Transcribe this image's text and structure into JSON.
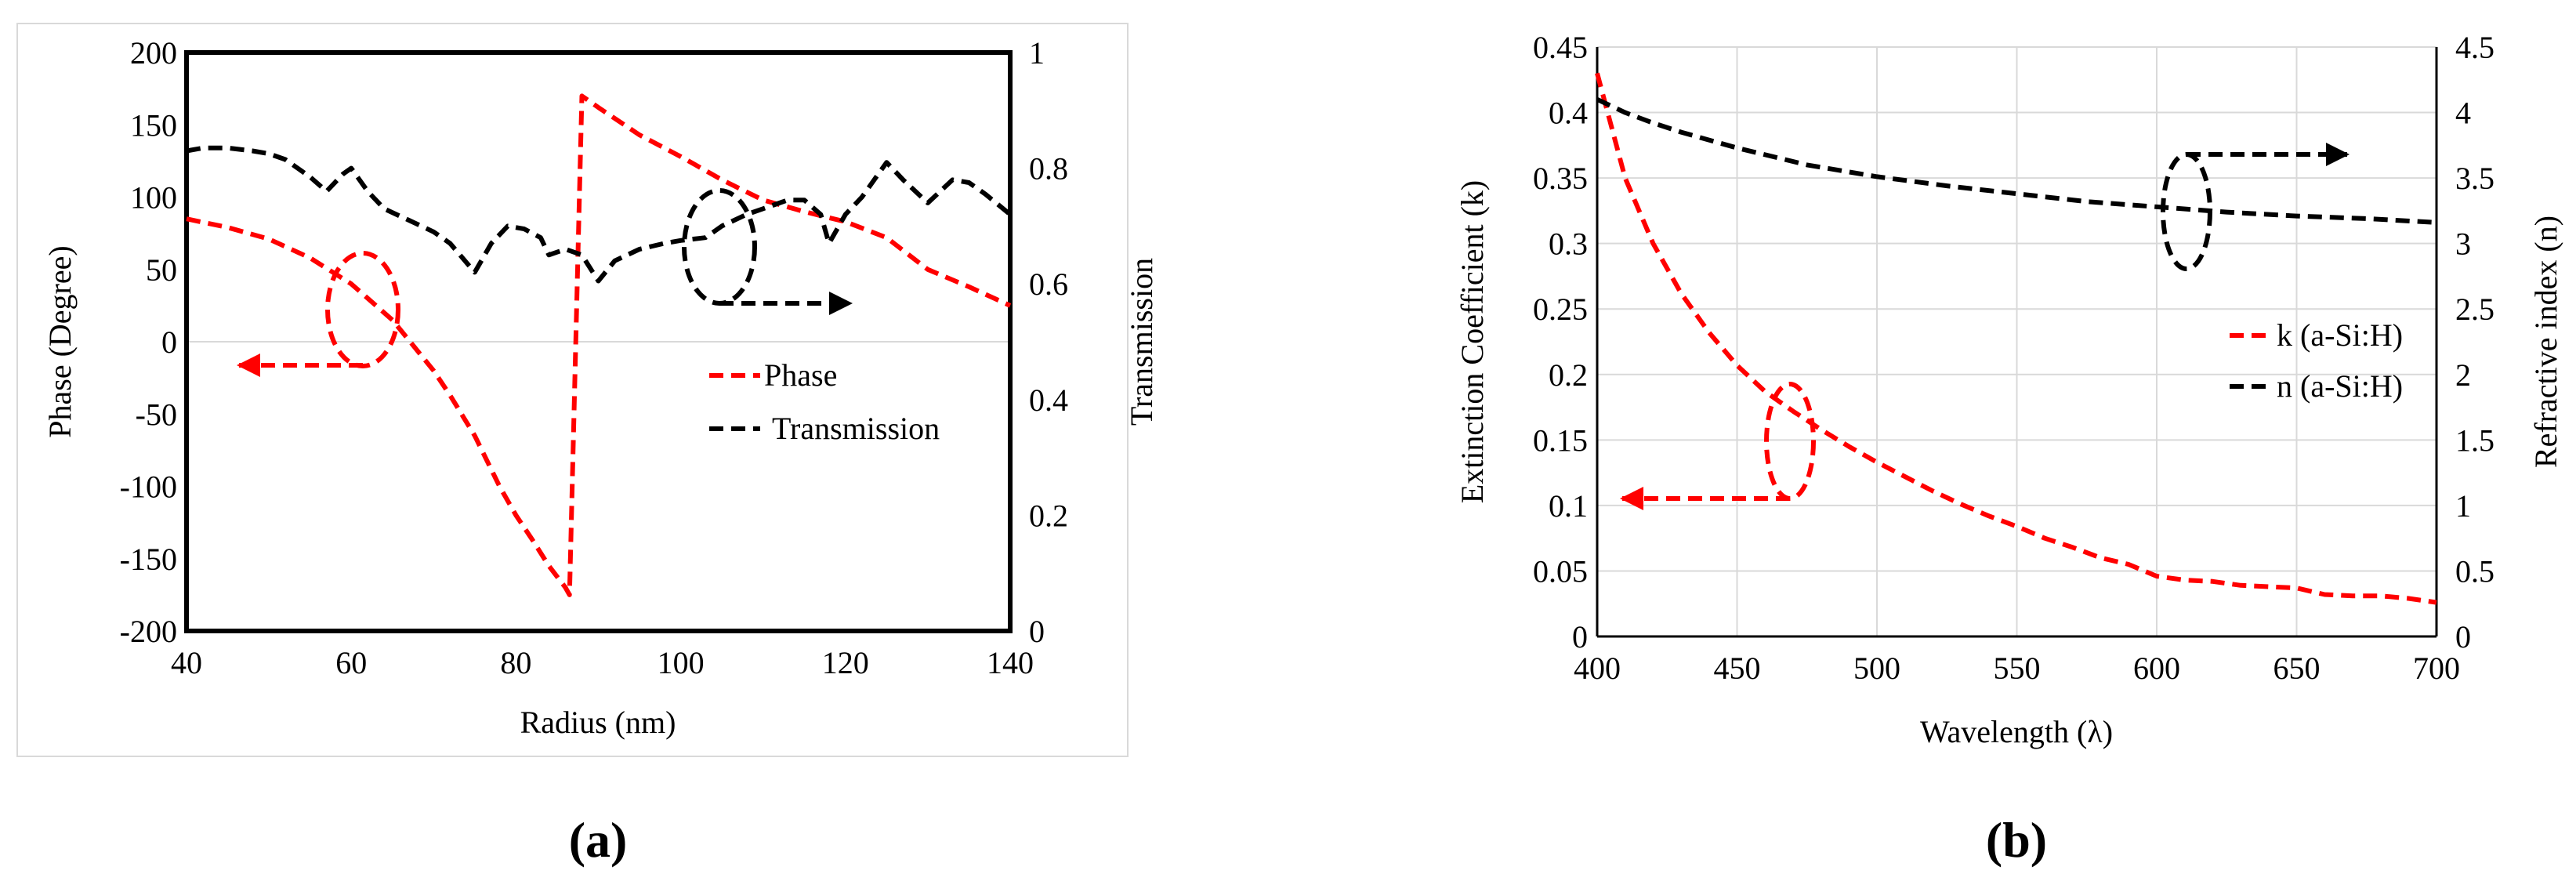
{
  "panel_labels": [
    "(a)",
    "(b)"
  ],
  "colors": {
    "red": "#ff0000",
    "black": "#000000",
    "grid": "#d9d9d9",
    "axis": "#000000",
    "frame": "#d9d9d9"
  },
  "chart_data": [
    {
      "type": "line",
      "panel": "(a)",
      "xlabel": "Radius (nm)",
      "ylabel": "Phase (Degree)",
      "y2label": "Transmission",
      "xlim": [
        40,
        140
      ],
      "xticks": [
        40,
        60,
        80,
        100,
        120,
        140
      ],
      "ylim": [
        -200,
        200
      ],
      "yticks": [
        -200,
        -150,
        -100,
        -50,
        0,
        50,
        100,
        150,
        200
      ],
      "y2lim": [
        0,
        1
      ],
      "y2ticks": [
        0,
        0.2,
        0.4,
        0.6,
        0.8,
        1
      ],
      "legend": [
        "Phase",
        "Transmission"
      ],
      "series": [
        {
          "name": "Phase",
          "axis": "left",
          "color": "#ff0000",
          "x": [
            40,
            45,
            50,
            55,
            60,
            65,
            70,
            72,
            75,
            78,
            80,
            82,
            84,
            86,
            86.5,
            88,
            90,
            95,
            100,
            105,
            110,
            115,
            120,
            125,
            130,
            135,
            140
          ],
          "y": [
            85,
            79,
            71,
            58,
            40,
            15,
            -20,
            -37,
            -65,
            -100,
            -120,
            -137,
            -155,
            -170,
            -175,
            170,
            162,
            143,
            128,
            112,
            98,
            90,
            83,
            72,
            50,
            38,
            25
          ]
        },
        {
          "name": "Transmission",
          "axis": "right",
          "color": "#000000",
          "x": [
            40,
            42,
            45,
            48,
            50,
            52,
            55,
            57,
            59,
            60,
            62,
            64,
            67,
            70,
            72,
            75,
            77,
            79,
            81,
            83,
            84,
            86,
            88,
            90,
            92,
            95,
            98,
            100,
            103,
            105,
            108,
            110,
            113,
            115,
            117,
            118,
            120,
            122,
            125,
            127,
            130,
            133,
            135,
            137,
            140
          ],
          "y": [
            0.83,
            0.835,
            0.835,
            0.83,
            0.825,
            0.815,
            0.785,
            0.76,
            0.79,
            0.8,
            0.76,
            0.73,
            0.71,
            0.69,
            0.67,
            0.62,
            0.67,
            0.7,
            0.695,
            0.68,
            0.65,
            0.66,
            0.65,
            0.605,
            0.64,
            0.66,
            0.67,
            0.675,
            0.68,
            0.7,
            0.72,
            0.73,
            0.745,
            0.745,
            0.72,
            0.67,
            0.72,
            0.75,
            0.81,
            0.78,
            0.74,
            0.78,
            0.775,
            0.755,
            0.72
          ]
        }
      ]
    },
    {
      "type": "line",
      "panel": "(b)",
      "xlabel": "Wavelength (λ)",
      "ylabel": "Extinction Coefficient (k)",
      "y2label": "Refractive index (n)",
      "xlim": [
        400,
        700
      ],
      "xticks": [
        400,
        450,
        500,
        550,
        600,
        650,
        700
      ],
      "ylim": [
        0,
        0.45
      ],
      "yticks": [
        0,
        0.05,
        0.1,
        0.15,
        0.2,
        0.25,
        0.3,
        0.35,
        0.4,
        0.45
      ],
      "y2lim": [
        0,
        4.5
      ],
      "y2ticks": [
        0,
        0.5,
        1,
        1.5,
        2,
        2.5,
        3,
        3.5,
        4,
        4.5
      ],
      "legend": [
        "k (a-Si:H)",
        "n (a-Si:H)"
      ],
      "series": [
        {
          "name": "k (a-Si:H)",
          "axis": "left",
          "color": "#ff0000",
          "x": [
            400,
            410,
            420,
            430,
            440,
            450,
            460,
            470,
            480,
            490,
            500,
            510,
            520,
            530,
            540,
            550,
            560,
            570,
            580,
            590,
            600,
            610,
            620,
            630,
            640,
            650,
            660,
            670,
            680,
            690,
            700
          ],
          "y": [
            0.43,
            0.35,
            0.3,
            0.262,
            0.232,
            0.207,
            0.187,
            0.172,
            0.158,
            0.145,
            0.133,
            0.122,
            0.111,
            0.101,
            0.092,
            0.084,
            0.075,
            0.068,
            0.06,
            0.055,
            0.046,
            0.043,
            0.042,
            0.039,
            0.038,
            0.037,
            0.032,
            0.031,
            0.031,
            0.029,
            0.026
          ]
        },
        {
          "name": "n (a-Si:H)",
          "axis": "right",
          "color": "#000000",
          "x": [
            400,
            410,
            420,
            430,
            450,
            475,
            500,
            525,
            550,
            575,
            600,
            625,
            650,
            675,
            700
          ],
          "y": [
            4.1,
            4.0,
            3.92,
            3.85,
            3.73,
            3.6,
            3.51,
            3.44,
            3.38,
            3.32,
            3.28,
            3.24,
            3.21,
            3.19,
            3.16
          ]
        }
      ]
    }
  ]
}
